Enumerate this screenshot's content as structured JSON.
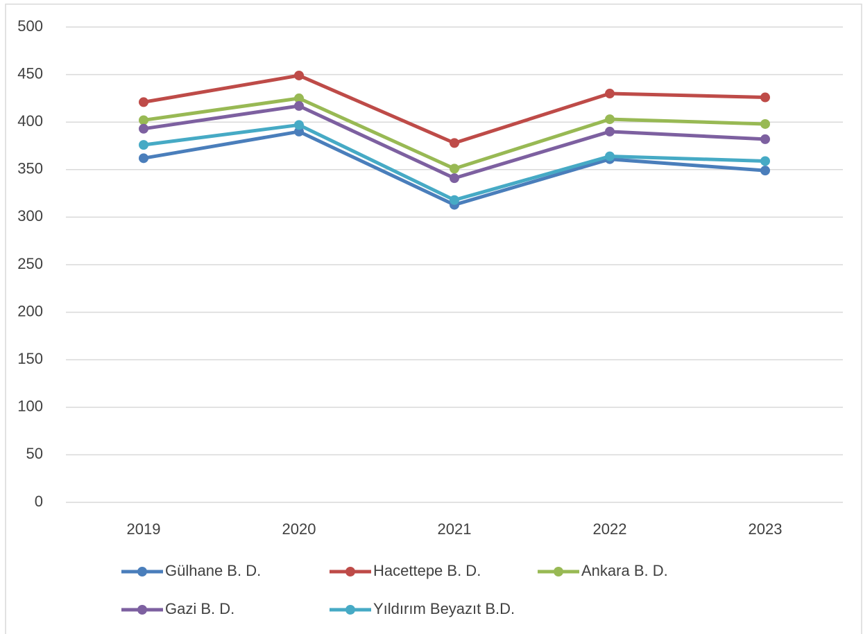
{
  "chart_data": {
    "type": "line",
    "categories": [
      "2019",
      "2020",
      "2021",
      "2022",
      "2023"
    ],
    "series": [
      {
        "name": "Gülhane B. D.",
        "color": "#4a7ebb",
        "values": [
          362,
          390,
          313,
          361,
          349
        ]
      },
      {
        "name": "Hacettepe B. D.",
        "color": "#be4b48",
        "values": [
          421,
          449,
          378,
          430,
          426
        ]
      },
      {
        "name": "Ankara B. D.",
        "color": "#98b954",
        "values": [
          402,
          425,
          351,
          403,
          398
        ]
      },
      {
        "name": "Gazi B. D.",
        "color": "#7d60a0",
        "values": [
          393,
          417,
          341,
          390,
          382
        ]
      },
      {
        "name": "Yıldırım Beyazıt B.D.",
        "color": "#46aac5",
        "values": [
          376,
          397,
          318,
          364,
          359
        ]
      }
    ],
    "ylim": [
      0,
      500
    ],
    "yticks": [
      0,
      50,
      100,
      150,
      200,
      250,
      300,
      350,
      400,
      450,
      500
    ],
    "grid": true,
    "legend": "bottom"
  }
}
